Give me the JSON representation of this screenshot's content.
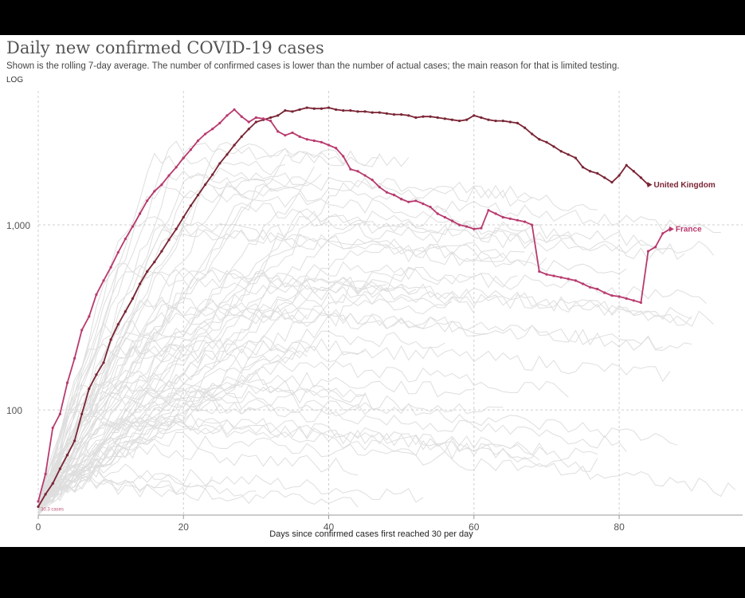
{
  "chart_data": {
    "type": "line",
    "title": "Daily new confirmed COVID-19 cases",
    "subtitle": "Shown is the rolling 7-day average. The number of confirmed cases is lower than the number of actual cases; the main reason for that is limited testing.",
    "scale_label": "LOG",
    "xlabel": "Days since confirmed cases first reached 30 per day",
    "ylabel": "",
    "y_scale": "log",
    "xlim": [
      0,
      97
    ],
    "ylim": [
      27,
      5300
    ],
    "x_ticks": [
      0,
      20,
      40,
      60,
      80
    ],
    "x_tick_labels": [
      "0",
      "20",
      "40",
      "60",
      "80"
    ],
    "y_ticks": [
      100,
      1000
    ],
    "y_tick_labels": [
      "100",
      "1,000"
    ],
    "grid": true,
    "start_annotation": "30.3 cases",
    "series": [
      {
        "name": "United Kingdom",
        "color": "#7a2434",
        "x": [
          0,
          1,
          2,
          3,
          4,
          5,
          6,
          7,
          8,
          9,
          10,
          11,
          12,
          13,
          14,
          15,
          16,
          17,
          18,
          19,
          20,
          21,
          22,
          23,
          24,
          25,
          26,
          27,
          28,
          29,
          30,
          31,
          32,
          33,
          34,
          35,
          36,
          37,
          38,
          39,
          40,
          41,
          42,
          43,
          44,
          45,
          46,
          47,
          48,
          49,
          50,
          51,
          52,
          53,
          54,
          55,
          56,
          57,
          58,
          59,
          60,
          61,
          62,
          63,
          64,
          65,
          66,
          67,
          68,
          69,
          70,
          71,
          72,
          73,
          74,
          75,
          76,
          77,
          78,
          79,
          80,
          81,
          82,
          83,
          84
        ],
        "values": [
          30,
          35,
          40,
          48,
          57,
          68,
          95,
          130,
          155,
          180,
          240,
          290,
          340,
          400,
          480,
          560,
          630,
          720,
          830,
          950,
          1100,
          1270,
          1450,
          1650,
          1870,
          2150,
          2400,
          2700,
          3000,
          3300,
          3600,
          3700,
          3800,
          3900,
          4150,
          4100,
          4200,
          4300,
          4250,
          4250,
          4300,
          4200,
          4150,
          4150,
          4100,
          4100,
          4050,
          4050,
          4000,
          3950,
          3950,
          3900,
          3800,
          3850,
          3850,
          3800,
          3750,
          3700,
          3650,
          3700,
          3900,
          3800,
          3700,
          3650,
          3650,
          3600,
          3550,
          3350,
          3100,
          2900,
          2800,
          2650,
          2500,
          2400,
          2300,
          2050,
          1950,
          1900,
          1800,
          1700,
          1850,
          2100,
          1950,
          1800,
          1650
        ],
        "end_label": "United Kingdom"
      },
      {
        "name": "France",
        "color": "#b83a6e",
        "x": [
          0,
          1,
          2,
          3,
          4,
          5,
          6,
          7,
          8,
          9,
          10,
          11,
          12,
          13,
          14,
          15,
          16,
          17,
          18,
          19,
          20,
          21,
          22,
          23,
          24,
          25,
          26,
          27,
          28,
          29,
          30,
          31,
          32,
          33,
          34,
          35,
          36,
          37,
          38,
          39,
          40,
          41,
          42,
          43,
          44,
          45,
          46,
          47,
          48,
          49,
          50,
          51,
          52,
          53,
          54,
          55,
          56,
          57,
          58,
          59,
          60,
          61,
          62,
          63,
          64,
          65,
          66,
          67,
          68,
          69,
          70,
          71,
          72,
          73,
          74,
          75,
          76,
          77,
          78,
          79,
          80,
          81,
          82,
          83,
          84,
          85,
          86,
          87
        ],
        "values": [
          32,
          45,
          80,
          95,
          140,
          190,
          270,
          320,
          420,
          500,
          590,
          710,
          840,
          980,
          1150,
          1350,
          1520,
          1650,
          1850,
          2050,
          2300,
          2550,
          2850,
          3100,
          3300,
          3550,
          3900,
          4200,
          3850,
          3600,
          3800,
          3750,
          3650,
          3200,
          3050,
          3150,
          3000,
          2900,
          2850,
          2800,
          2700,
          2600,
          2350,
          2000,
          1950,
          1850,
          1750,
          1600,
          1500,
          1450,
          1380,
          1330,
          1350,
          1300,
          1250,
          1150,
          1100,
          1050,
          1000,
          980,
          950,
          960,
          1200,
          1150,
          1100,
          1080,
          1060,
          1040,
          1000,
          560,
          540,
          530,
          520,
          510,
          500,
          480,
          460,
          450,
          430,
          415,
          410,
          400,
          390,
          380,
          720,
          760,
          900,
          950
        ],
        "end_label": "France"
      }
    ],
    "background_series_note": "many unlabeled light-grey country lines"
  }
}
